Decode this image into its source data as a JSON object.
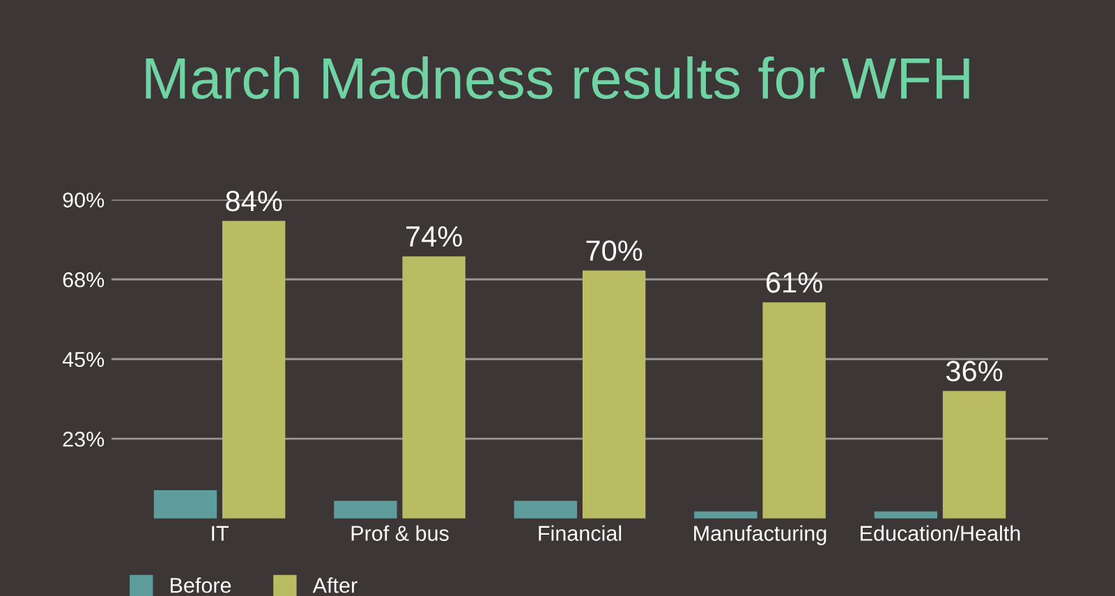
{
  "chart_data": {
    "type": "bar",
    "title": "March Madness results for WFH",
    "categories": [
      "IT",
      "Prof & bus",
      "Financial",
      "Manufacturing",
      "Education/Health"
    ],
    "series": [
      {
        "name": "Before",
        "color": "#5f9c9c",
        "values": [
          8,
          5,
          5,
          2,
          2
        ]
      },
      {
        "name": "After",
        "color": "#b9bc62",
        "values": [
          84,
          74,
          70,
          61,
          36
        ],
        "value_labels": [
          "84%",
          "74%",
          "70%",
          "61%",
          "36%"
        ]
      }
    ],
    "ylim": [
      0,
      90
    ],
    "yticks": [
      {
        "value": 22.5,
        "label": "23%"
      },
      {
        "value": 45,
        "label": "45%"
      },
      {
        "value": 67.5,
        "label": "68%"
      },
      {
        "value": 90,
        "label": "90%"
      }
    ],
    "grid": "y",
    "legend": "bottom left"
  }
}
